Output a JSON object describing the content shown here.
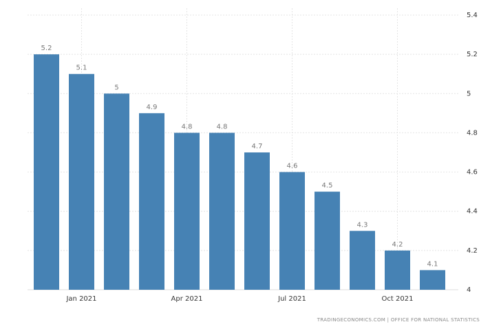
{
  "chart_data": {
    "type": "bar",
    "categories": [
      null,
      "Jan 2021",
      null,
      null,
      "Apr 2021",
      null,
      null,
      "Jul 2021",
      null,
      null,
      "Oct 2021",
      null
    ],
    "values": [
      5.2,
      5.1,
      5,
      4.9,
      4.8,
      4.8,
      4.7,
      4.6,
      4.5,
      4.3,
      4.2,
      4.1
    ],
    "color": "#4682b4",
    "ylim": [
      4,
      5.4
    ],
    "yticks": [
      4,
      4.2,
      4.4,
      4.6,
      4.8,
      5,
      5.2,
      5.4
    ],
    "grid": true,
    "source": "TRADINGECONOMICS.COM | OFFICE FOR NATIONAL STATISTICS"
  }
}
